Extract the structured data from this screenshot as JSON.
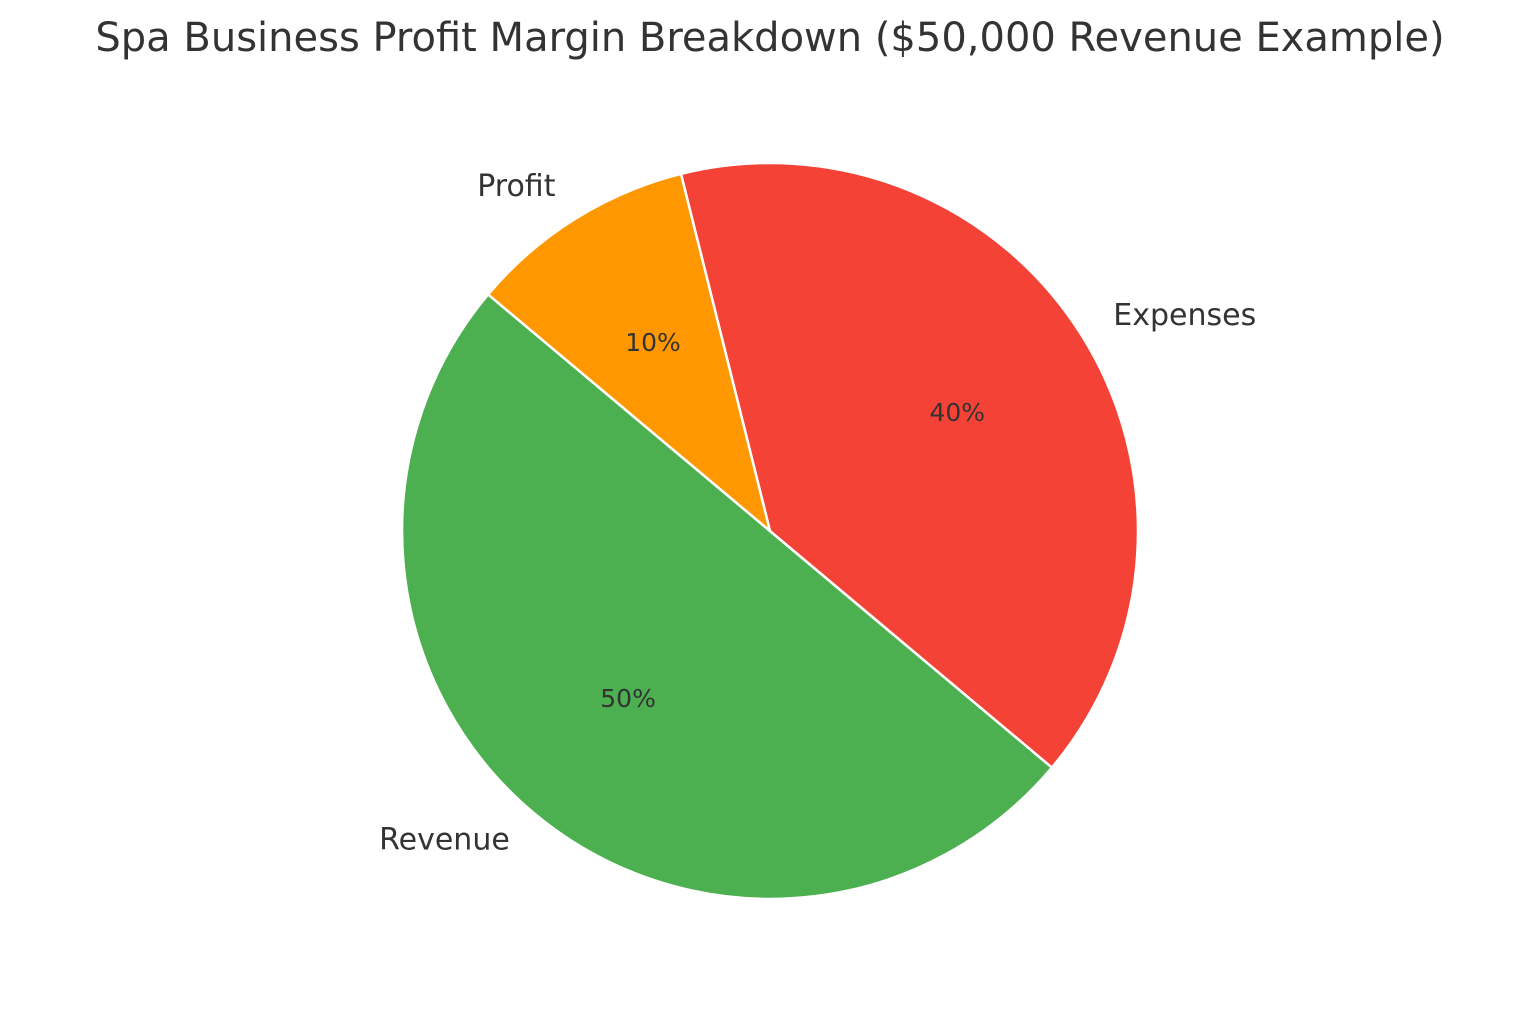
{
  "chart_data": {
    "type": "pie",
    "title": "Spa Business Profit Margin Breakdown ($50,000 Revenue Example)",
    "categories": [
      "Revenue",
      "Expenses",
      "Profit"
    ],
    "values": [
      50,
      40,
      10
    ],
    "value_labels": [
      "50%",
      "40%",
      "10%"
    ],
    "colors": [
      "#4caf50",
      "#f44336",
      "#ff9800"
    ]
  }
}
